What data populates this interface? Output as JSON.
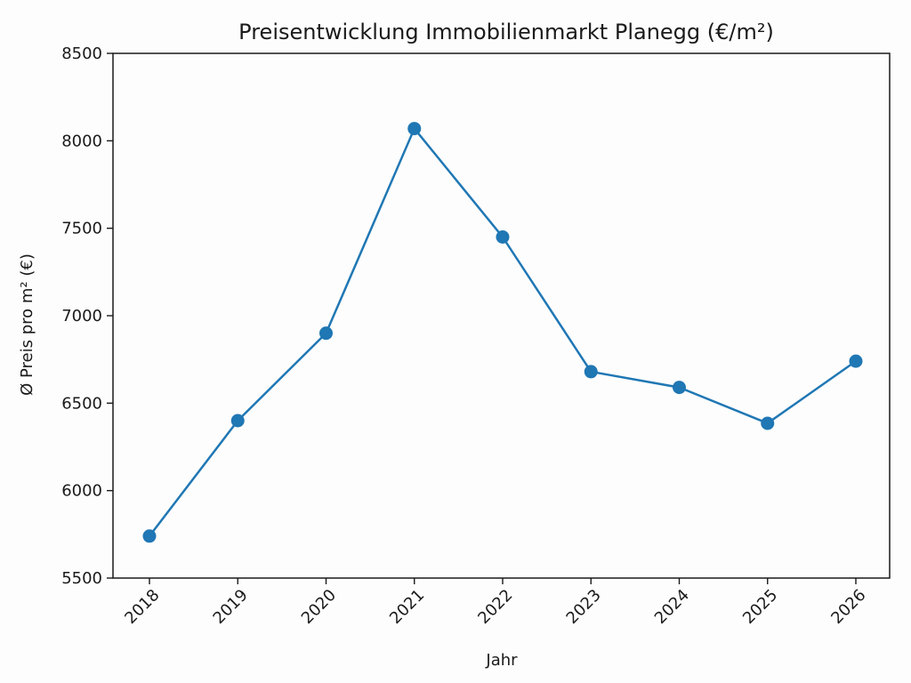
{
  "chart_data": {
    "type": "line",
    "title": "Preisentwicklung Immobilienmarkt Planegg (€/m²)",
    "xlabel": "Jahr",
    "ylabel": "Ø Preis pro m² (€)",
    "categories": [
      "2018",
      "2019",
      "2020",
      "2021",
      "2022",
      "2023",
      "2024",
      "2025",
      "2026"
    ],
    "series": [
      {
        "values": [
          5740,
          6400,
          6900,
          8070,
          7450,
          6680,
          6590,
          6385,
          6740
        ]
      }
    ],
    "ylim": [
      5500,
      8500
    ],
    "yticks": [
      5500,
      6000,
      6500,
      7000,
      7500,
      8000,
      8500
    ],
    "ytick_labels": [
      "5500",
      "6000",
      "6500",
      "7000",
      "7500",
      "8000",
      "8500"
    ],
    "xtick_rotation": "45°",
    "grid": false,
    "markers": "circle",
    "color": "#1f77b4"
  }
}
